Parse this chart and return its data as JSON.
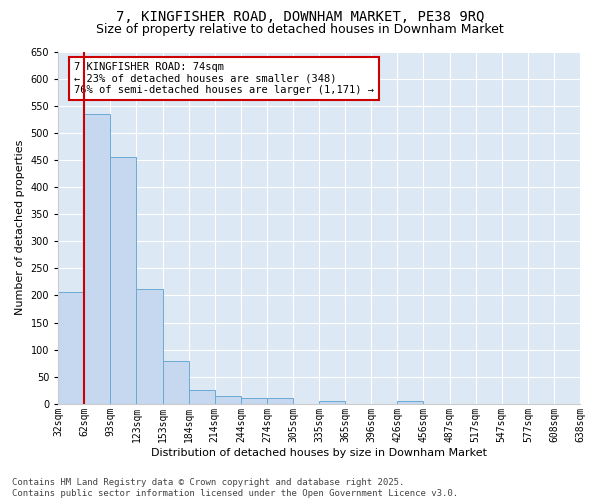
{
  "title": "7, KINGFISHER ROAD, DOWNHAM MARKET, PE38 9RQ",
  "subtitle": "Size of property relative to detached houses in Downham Market",
  "xlabel": "Distribution of detached houses by size in Downham Market",
  "ylabel": "Number of detached properties",
  "bar_values": [
    207,
    535,
    455,
    212,
    80,
    26,
    15,
    10,
    10,
    0,
    5,
    0,
    0,
    5,
    0,
    0,
    0,
    0,
    0,
    0
  ],
  "bar_labels": [
    "32sqm",
    "62sqm",
    "93sqm",
    "123sqm",
    "153sqm",
    "184sqm",
    "214sqm",
    "244sqm",
    "274sqm",
    "305sqm",
    "335sqm",
    "365sqm",
    "396sqm",
    "426sqm",
    "456sqm",
    "487sqm",
    "517sqm",
    "547sqm",
    "577sqm",
    "608sqm",
    "638sqm"
  ],
  "bar_color": "#c5d8f0",
  "bar_edge_color": "#6aaad4",
  "property_line_label": "7 KINGFISHER ROAD: 74sqm",
  "annotation_line1": "← 23% of detached houses are smaller (348)",
  "annotation_line2": "76% of semi-detached houses are larger (1,171) →",
  "annotation_box_color": "#ffffff",
  "annotation_box_edge_color": "#cc0000",
  "vline_color": "#cc0000",
  "ylim": [
    0,
    650
  ],
  "yticks": [
    0,
    50,
    100,
    150,
    200,
    250,
    300,
    350,
    400,
    450,
    500,
    550,
    600,
    650
  ],
  "fig_bg_color": "#ffffff",
  "plot_bg_color": "#dde8f5",
  "grid_color": "#ffffff",
  "footer1": "Contains HM Land Registry data © Crown copyright and database right 2025.",
  "footer2": "Contains public sector information licensed under the Open Government Licence v3.0.",
  "title_fontsize": 10,
  "subtitle_fontsize": 9,
  "axis_label_fontsize": 8,
  "tick_fontsize": 7,
  "annotation_fontsize": 7.5,
  "footer_fontsize": 6.5
}
